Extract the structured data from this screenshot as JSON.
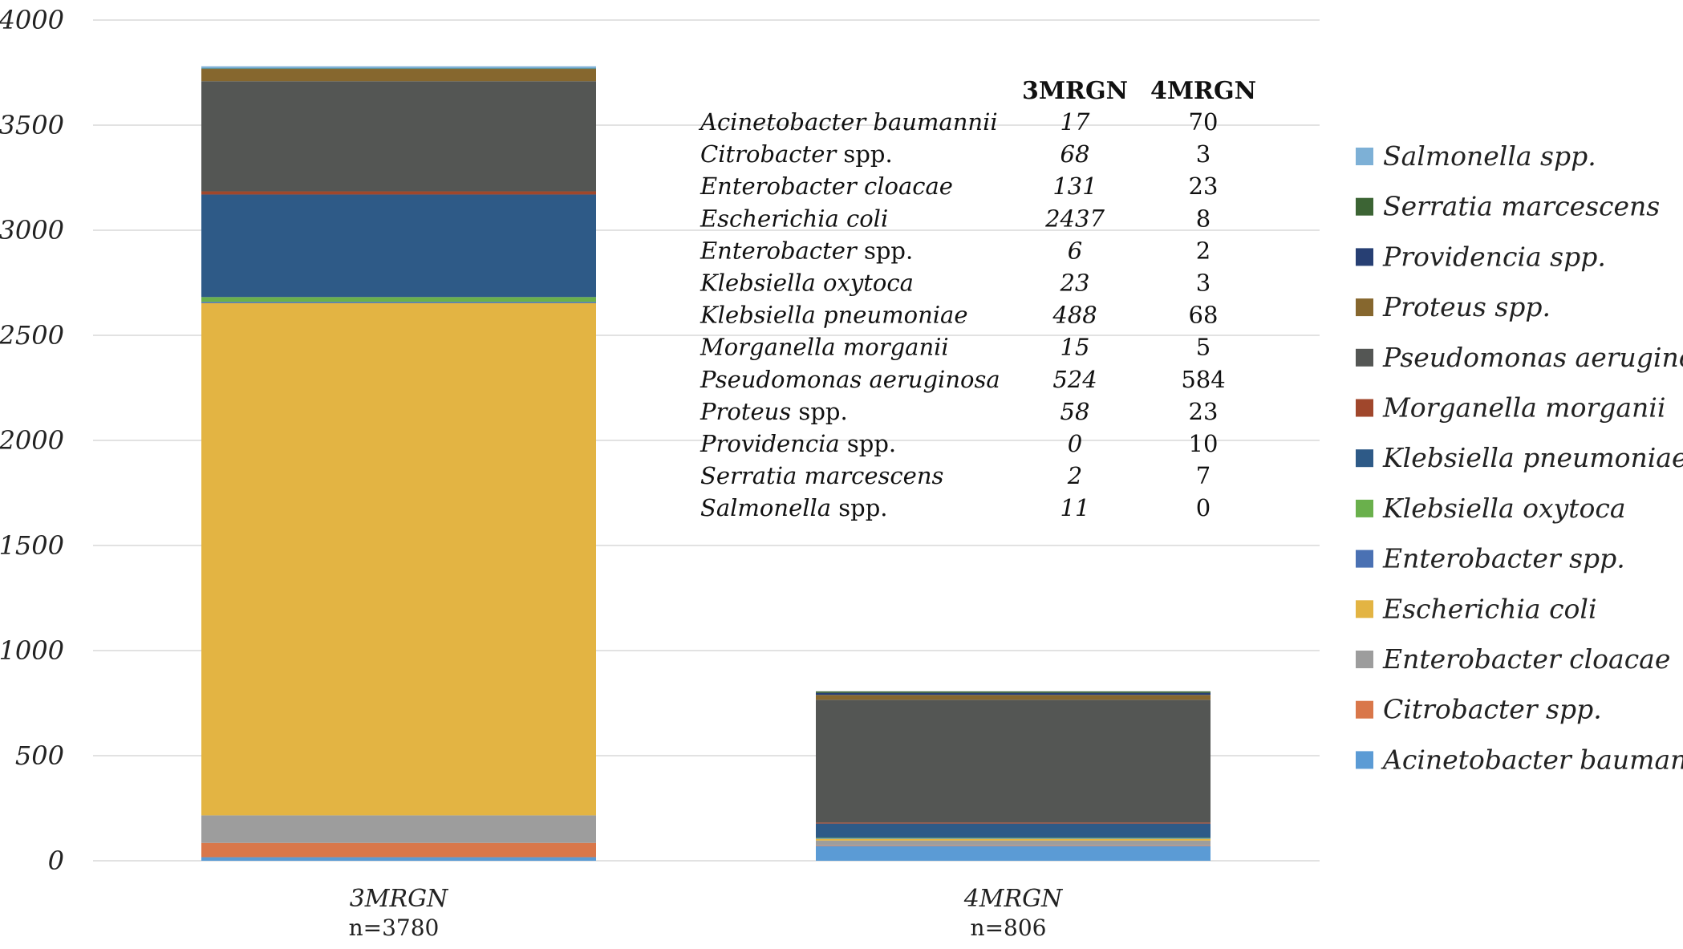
{
  "chart_data": {
    "type": "bar",
    "stacked": true,
    "categories": [
      "3MRGN",
      "4MRGN"
    ],
    "category_counts": [
      "n=3780",
      "n=806"
    ],
    "ylim": [
      0,
      4000
    ],
    "yticks": [
      0,
      500,
      1000,
      1500,
      2000,
      2500,
      3000,
      3500,
      4000
    ],
    "grid": true,
    "legend_position": "right",
    "series": [
      {
        "name": "Acinetobacter baumannii",
        "values": [
          17,
          70
        ],
        "color": "#5b9bd5"
      },
      {
        "name": "Citrobacter spp.",
        "values": [
          68,
          3
        ],
        "color": "#d9774a"
      },
      {
        "name": "Enterobacter cloacae",
        "values": [
          131,
          23
        ],
        "color": "#9d9d9d"
      },
      {
        "name": "Escherichia coli",
        "values": [
          2437,
          8
        ],
        "color": "#e3b443"
      },
      {
        "name": "Enterobacter spp.",
        "values": [
          6,
          2
        ],
        "color": "#4a71b3"
      },
      {
        "name": "Klebsiella oxytoca",
        "values": [
          23,
          3
        ],
        "color": "#6ab04c"
      },
      {
        "name": "Klebsiella pneumoniae",
        "values": [
          488,
          68
        ],
        "color": "#2e5a87"
      },
      {
        "name": "Morganella morganii",
        "values": [
          15,
          5
        ],
        "color": "#a0472c"
      },
      {
        "name": "Pseudomonas aeruginosa",
        "values": [
          524,
          584
        ],
        "color": "#545654"
      },
      {
        "name": "Proteus spp.",
        "values": [
          58,
          23
        ],
        "color": "#86672e"
      },
      {
        "name": "Providencia spp.",
        "values": [
          0,
          10
        ],
        "color": "#273f73"
      },
      {
        "name": "Serratia marcescens",
        "values": [
          2,
          7
        ],
        "color": "#3c6434"
      },
      {
        "name": "Salmonella spp.",
        "values": [
          11,
          0
        ],
        "color": "#7db0d6"
      }
    ],
    "table": {
      "headers": [
        "3MRGN",
        "4MRGN"
      ],
      "rows": [
        {
          "genus": "Acinetobacter baumannii",
          "rest": "",
          "v3": "17",
          "v4": "70"
        },
        {
          "genus": "Citrobacter",
          "rest": " spp.",
          "v3": "68",
          "v4": "3"
        },
        {
          "genus": "Enterobacter cloacae",
          "rest": "",
          "v3": "131",
          "v4": "23"
        },
        {
          "genus": "Escherichia coli",
          "rest": "",
          "v3": "2437",
          "v4": "8"
        },
        {
          "genus": "Enterobacter",
          "rest": " spp.",
          "v3": "6",
          "v4": "2"
        },
        {
          "genus": "Klebsiella oxytoca",
          "rest": "",
          "v3": "23",
          "v4": "3"
        },
        {
          "genus": "Klebsiella pneumoniae",
          "rest": "",
          "v3": "488",
          "v4": "68"
        },
        {
          "genus": "Morganella morganii",
          "rest": "",
          "v3": "15",
          "v4": "5"
        },
        {
          "genus": "Pseudomonas aeruginosa",
          "rest": "",
          "v3": "524",
          "v4": "584"
        },
        {
          "genus": "Proteus",
          "rest": " spp.",
          "v3": "58",
          "v4": "23"
        },
        {
          "genus": "Providencia",
          "rest": " spp.",
          "v3": "0",
          "v4": "10"
        },
        {
          "genus": "Serratia marcescens",
          "rest": "",
          "v3": "2",
          "v4": "7"
        },
        {
          "genus": "Salmonella",
          "rest": " spp.",
          "v3": "11",
          "v4": "0"
        }
      ]
    }
  }
}
